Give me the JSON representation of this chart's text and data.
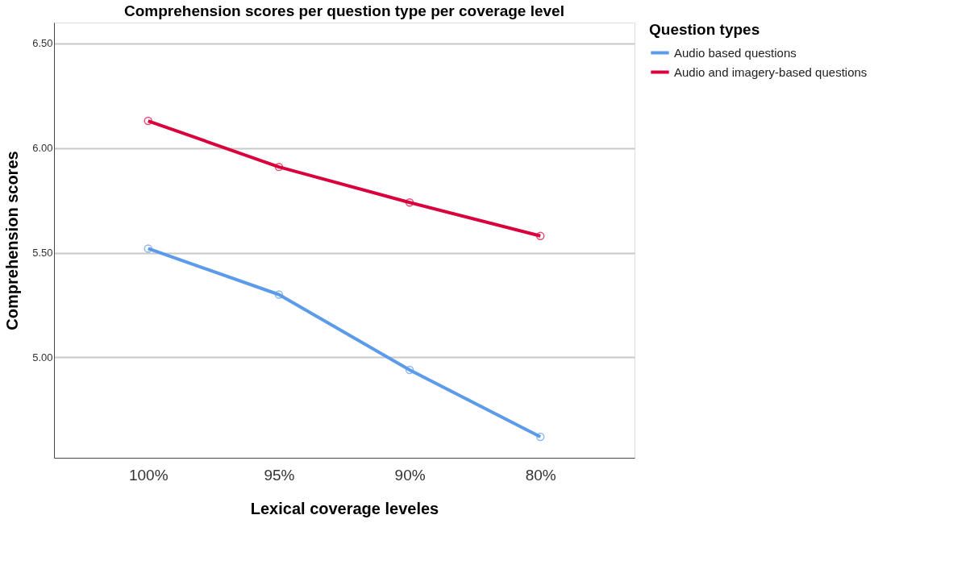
{
  "chart_data": {
    "type": "line",
    "title": "Comprehension scores per question type per coverage level",
    "xlabel": "Lexical coverage leveles",
    "ylabel": "Comprehension scores",
    "legend_title": "Question types",
    "categories": [
      "100%",
      "95%",
      "90%",
      "80%"
    ],
    "series": [
      {
        "name": "Audio based questions",
        "color": "#5b9bea",
        "values": [
          5.52,
          5.3,
          4.94,
          4.62
        ]
      },
      {
        "name": "Audio and imagery-based questions",
        "color": "#d9003b",
        "values": [
          6.13,
          5.91,
          5.74,
          5.58
        ]
      }
    ],
    "ylim": [
      4.52,
      6.6
    ],
    "yticks": [
      {
        "value": 5.0,
        "label": "5.00"
      },
      {
        "value": 5.5,
        "label": "5.50"
      },
      {
        "value": 6.0,
        "label": "6.00"
      },
      {
        "value": 6.5,
        "label": "6.50"
      }
    ],
    "grid": "y",
    "legend": "top right",
    "marker": "circle",
    "line_style": "solid"
  }
}
